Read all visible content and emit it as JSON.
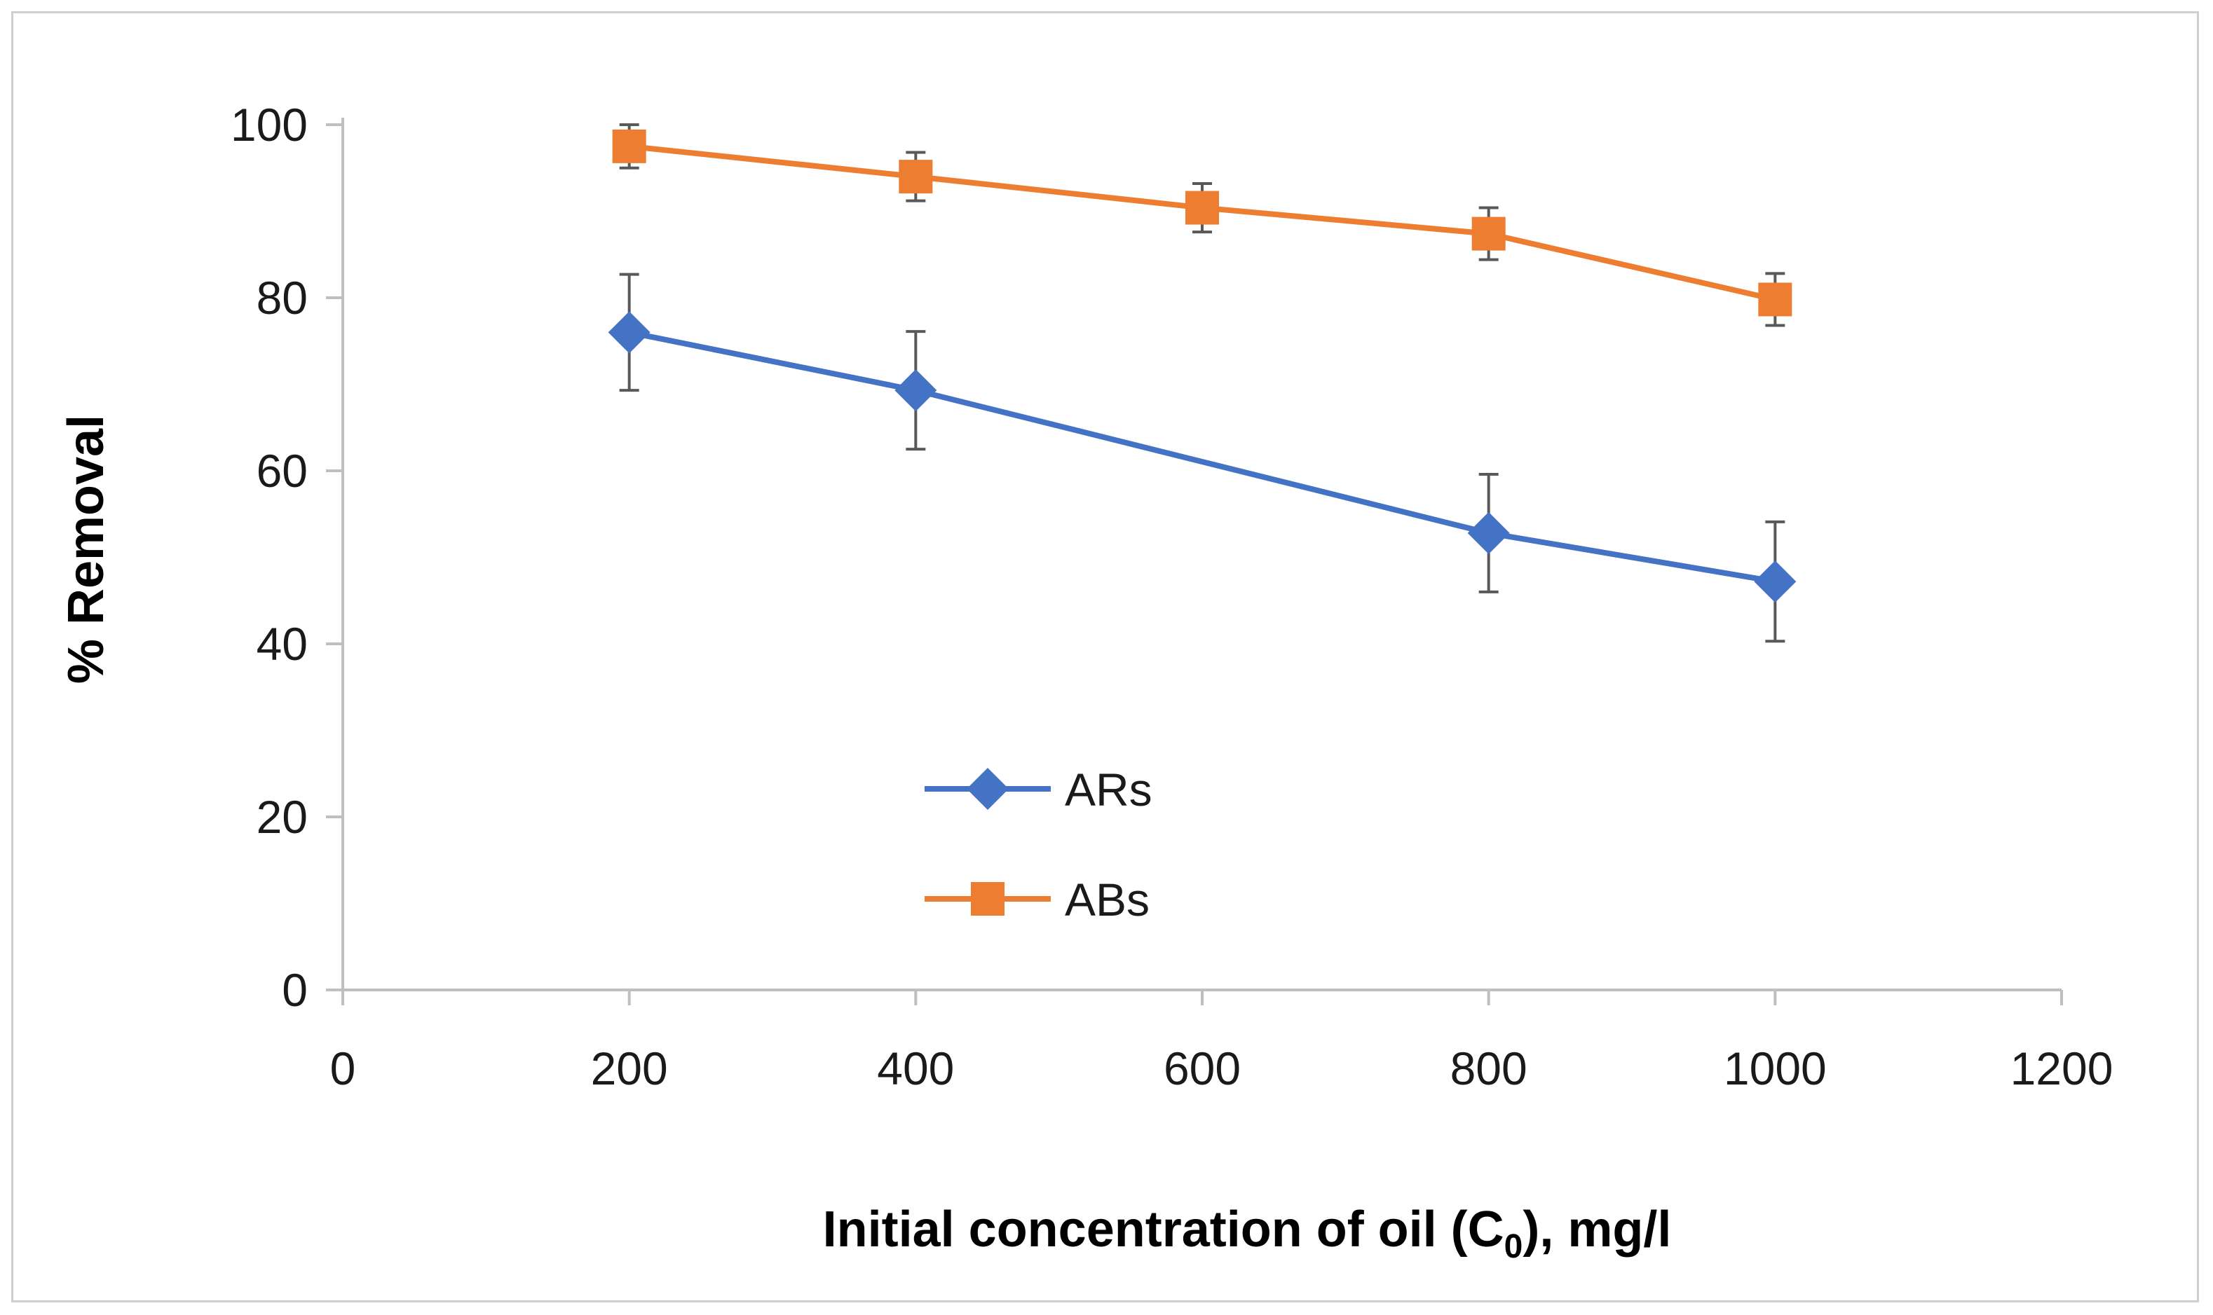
{
  "chart_data": {
    "type": "line",
    "title": "",
    "xlabel": "Initial concentration of oil (C",
    "xlabel_sub": "0",
    "xlabel_tail": "), mg/l",
    "ylabel": "% Removal",
    "xlim": [
      0,
      1200
    ],
    "ylim": [
      0,
      100
    ],
    "xticks": [
      0,
      200,
      400,
      600,
      800,
      1000,
      1200
    ],
    "yticks": [
      0,
      20,
      40,
      60,
      80,
      100
    ],
    "grid": false,
    "legend_position": "center-left",
    "series": [
      {
        "name": "ARs",
        "color": "#4472C4",
        "marker": "diamond",
        "x": [
          200,
          400,
          800,
          1000
        ],
        "values": [
          76,
          69.3,
          52.8,
          47.2
        ],
        "error": [
          6.7,
          6.8,
          6.8,
          6.9
        ]
      },
      {
        "name": "ABs",
        "color": "#ED7D31",
        "marker": "square",
        "x": [
          200,
          400,
          600,
          800,
          1000
        ],
        "values": [
          97.5,
          94,
          90.4,
          87.4,
          79.8
        ],
        "error": [
          2.5,
          2.8,
          2.8,
          3.0,
          3.0
        ]
      }
    ],
    "errorbar_color": "#595959",
    "axis_color": "#bfbfbf"
  }
}
